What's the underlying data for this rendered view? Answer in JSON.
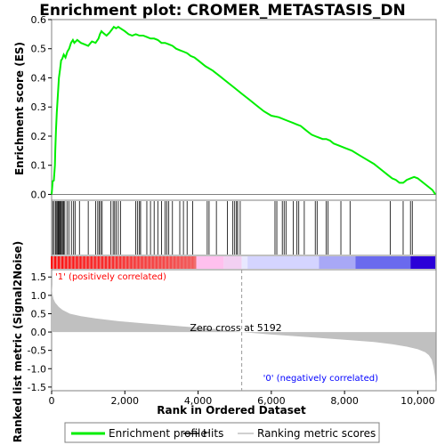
{
  "chart_data": {
    "type": "line",
    "title": "Enrichment plot: CROMER_METASTASIS_DN",
    "top_panel": {
      "ylabel": "Enrichment score (ES)",
      "ylim": [
        -0.02,
        0.6
      ],
      "yticks": [
        "0.0",
        "0.1",
        "0.2",
        "0.3",
        "0.4",
        "0.5",
        "0.6"
      ],
      "ytick_values": [
        0.0,
        0.1,
        0.2,
        0.3,
        0.4,
        0.5,
        0.6
      ],
      "line_color": "#00ee00",
      "series": [
        {
          "name": "Enrichment profile",
          "x": [
            0,
            30,
            60,
            90,
            100,
            120,
            140,
            160,
            180,
            200,
            230,
            260,
            290,
            330,
            380,
            430,
            480,
            530,
            580,
            620,
            700,
            800,
            900,
            1000,
            1100,
            1200,
            1280,
            1320,
            1360,
            1400,
            1500,
            1580,
            1640,
            1700,
            1760,
            1820,
            1880,
            2000,
            2100,
            2200,
            2300,
            2400,
            2500,
            2600,
            2700,
            2800,
            2900,
            3000,
            3100,
            3200,
            3300,
            3400,
            3500,
            3600,
            3700,
            3800,
            3900,
            4000,
            4200,
            4400,
            4600,
            4800,
            5000,
            5200,
            5400,
            5600,
            5800,
            6000,
            6200,
            6400,
            6600,
            6700,
            6800,
            6900,
            7000,
            7100,
            7200,
            7300,
            7400,
            7500,
            7600,
            7700,
            7800,
            7900,
            8000,
            8100,
            8200,
            8400,
            8600,
            8800,
            9000,
            9200,
            9300,
            9400,
            9500,
            9600,
            9700,
            9800,
            9900,
            10000,
            10200,
            10400,
            10480
          ],
          "y": [
            0.0,
            0.045,
            0.048,
            0.1,
            0.15,
            0.22,
            0.28,
            0.32,
            0.36,
            0.4,
            0.43,
            0.46,
            0.465,
            0.48,
            0.47,
            0.49,
            0.5,
            0.52,
            0.53,
            0.52,
            0.53,
            0.52,
            0.515,
            0.51,
            0.525,
            0.52,
            0.535,
            0.55,
            0.56,
            0.555,
            0.545,
            0.555,
            0.565,
            0.575,
            0.57,
            0.575,
            0.57,
            0.56,
            0.55,
            0.545,
            0.55,
            0.545,
            0.545,
            0.54,
            0.535,
            0.535,
            0.53,
            0.52,
            0.52,
            0.515,
            0.51,
            0.5,
            0.495,
            0.49,
            0.485,
            0.475,
            0.47,
            0.46,
            0.44,
            0.425,
            0.405,
            0.385,
            0.365,
            0.345,
            0.325,
            0.305,
            0.285,
            0.27,
            0.265,
            0.255,
            0.245,
            0.24,
            0.235,
            0.225,
            0.215,
            0.205,
            0.2,
            0.195,
            0.19,
            0.19,
            0.185,
            0.175,
            0.17,
            0.165,
            0.16,
            0.155,
            0.15,
            0.135,
            0.12,
            0.105,
            0.085,
            0.065,
            0.055,
            0.05,
            0.04,
            0.04,
            0.05,
            0.055,
            0.06,
            0.055,
            0.035,
            0.015,
            0.0
          ]
        }
      ],
      "hits": [
        30,
        70,
        110,
        140,
        165,
        185,
        205,
        225,
        250,
        270,
        300,
        330,
        360,
        420,
        470,
        540,
        600,
        640,
        760,
        1000,
        1200,
        1260,
        1300,
        1340,
        1380,
        1620,
        1680,
        1720,
        1760,
        1820,
        1880,
        2300,
        2350,
        2400,
        2430,
        2600,
        2700,
        2800,
        2900,
        3000,
        3100,
        3150,
        3200,
        3300,
        3500,
        3600,
        3700,
        3850,
        4250,
        4300,
        4500,
        4800,
        4950,
        5000,
        5050,
        5080,
        5150,
        6100,
        6150,
        6300,
        6350,
        6400,
        6600,
        6700,
        6750,
        6900,
        7200,
        7250,
        7500,
        7550,
        7900,
        8150,
        9250,
        9600,
        9800,
        9850
      ]
    },
    "bottom_panel": {
      "ylabel": "Ranked list metric (Signal2Noise)",
      "ylim": [
        -1.6,
        1.7
      ],
      "yticks": [
        "-1.5",
        "-1.0",
        "-0.5",
        "0.0",
        "0.5",
        "1.0",
        "1.5"
      ],
      "ytick_values": [
        -1.5,
        -1.0,
        -0.5,
        0.0,
        0.5,
        1.0,
        1.5
      ],
      "fill_color": "#c0c0c0",
      "metric_x": [
        0,
        20,
        50,
        100,
        200,
        300,
        500,
        800,
        1200,
        1800,
        2500,
        3500,
        4500,
        5192,
        6000,
        7000,
        8000,
        8800,
        9300,
        9700,
        10000,
        10200,
        10300,
        10380,
        10430,
        10470,
        10490
      ],
      "metric_y": [
        1.3,
        1.05,
        0.9,
        0.8,
        0.68,
        0.6,
        0.5,
        0.43,
        0.37,
        0.3,
        0.24,
        0.16,
        0.08,
        0.0,
        -0.07,
        -0.14,
        -0.21,
        -0.27,
        -0.33,
        -0.4,
        -0.47,
        -0.55,
        -0.63,
        -0.75,
        -0.95,
        -1.2,
        -1.42
      ],
      "zero_cross_label": "Zero cross at 5192",
      "zero_cross": 5192,
      "positive_label": "'1' (positively correlated)",
      "negative_label": "'0' (negatively correlated)",
      "positive_color": "#ff0000",
      "negative_color": "#0000ff"
    },
    "xlabel": "Rank in Ordered Dataset",
    "xlim": [
      0,
      10500
    ],
    "xticks": [
      "0",
      "2,000",
      "4,000",
      "6,000",
      "8,000",
      "10,000"
    ],
    "xtick_values": [
      0,
      2000,
      4000,
      6000,
      8000,
      10000
    ],
    "color_bar_segments": [
      {
        "to": 3950,
        "color": "#f06e6e"
      },
      {
        "to": 4700,
        "color": "#ffc0ee"
      },
      {
        "to": 5192,
        "color": "#f2d0f2"
      },
      {
        "to": 5350,
        "color": "#e8e8ff"
      },
      {
        "to": 7300,
        "color": "#d4d4ff"
      },
      {
        "to": 8300,
        "color": "#a8a8f6"
      },
      {
        "to": 9800,
        "color": "#6a6aee"
      },
      {
        "to": 10480,
        "color": "#2b00d8"
      }
    ],
    "legend": [
      {
        "label": "Enrichment profile",
        "color": "#00ee00"
      },
      {
        "label": "Hits",
        "color": "#000000"
      },
      {
        "label": "Ranking metric scores",
        "color": "#c0c0c0"
      }
    ],
    "legend_position": "bottom"
  }
}
